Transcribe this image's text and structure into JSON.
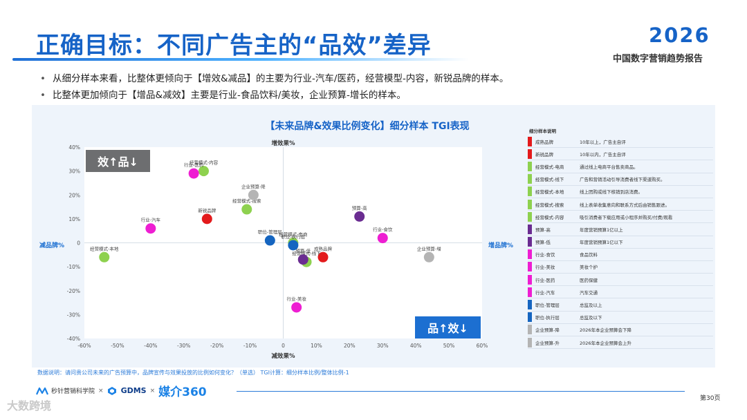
{
  "header": {
    "title": "正确目标：不同广告主的“品效”差异",
    "brand_year": "2026",
    "brand_subtitle": "中国数字营销趋势报告"
  },
  "bullets": [
    "从细分样本来看，比整体更倾向于【增效&减品】的主要为行业-汽车/医药，经营模型-内容，新锐品牌的样本。",
    "比整体更加倾向于【增品&减效】主要是行业-食品饮料/美妆，企业预算-增长的样本。"
  ],
  "chart_data": {
    "type": "scatter",
    "title": "【未来品牌&效果比例变化】细分样本  TGI表现",
    "axis_labels": {
      "top": "增效果%",
      "bottom": "减效果%",
      "left": "减品牌%",
      "right": "增品牌%"
    },
    "xlim": [
      -60,
      60
    ],
    "ylim": [
      -40,
      40
    ],
    "x_ticks": [
      "-60%",
      "-50%",
      "-40%",
      "-30%",
      "-20%",
      "-10%",
      "0",
      "10%",
      "20%",
      "30%",
      "40%",
      "50%",
      "60%"
    ],
    "y_ticks": [
      "40%",
      "30%",
      "20%",
      "10%",
      "0",
      "-10%",
      "-20%",
      "-30%",
      "-40%"
    ],
    "quadrant_labels": {
      "top_left": "效↑品↓",
      "bottom_right": "品↑效↓"
    },
    "points": [
      {
        "label": "成熟品牌",
        "x": 12,
        "y": -6,
        "color": "#e31a1c"
      },
      {
        "label": "新锐品牌",
        "x": -23,
        "y": 10,
        "color": "#e31a1c"
      },
      {
        "label": "经营模式-电商",
        "x": 3,
        "y": 0,
        "color": "#8ed14f"
      },
      {
        "label": "经营模式-线下",
        "x": 7,
        "y": -8,
        "color": "#8ed14f"
      },
      {
        "label": "经营模式-本地",
        "x": -54,
        "y": -6,
        "color": "#8ed14f"
      },
      {
        "label": "经营模式-搜索",
        "x": -11,
        "y": 14,
        "color": "#8ed14f"
      },
      {
        "label": "经营模式-内容",
        "x": -24,
        "y": 30,
        "color": "#8ed14f"
      },
      {
        "label": "预算-高",
        "x": 23,
        "y": 11,
        "color": "#6a2c91"
      },
      {
        "label": "预算-低",
        "x": 6,
        "y": -7,
        "color": "#6a2c91"
      },
      {
        "label": "行业-食饮",
        "x": 30,
        "y": 2,
        "color": "#ee1ed2"
      },
      {
        "label": "行业-美妆",
        "x": 4,
        "y": -27,
        "color": "#ee1ed2"
      },
      {
        "label": "行业-医药",
        "x": -27,
        "y": 29,
        "color": "#ee1ed2"
      },
      {
        "label": "行业-汽车",
        "x": -40,
        "y": 6,
        "color": "#ee1ed2"
      },
      {
        "label": "职位-管理层",
        "x": -4,
        "y": 1,
        "color": "#1565c0"
      },
      {
        "label": "职位-执行层",
        "x": 3,
        "y": -1,
        "color": "#1565c0"
      },
      {
        "label": "企业预算-降",
        "x": -9,
        "y": 20,
        "color": "#b4b4b4"
      },
      {
        "label": "企业预算-增",
        "x": 44,
        "y": -6,
        "color": "#b4b4b4"
      }
    ]
  },
  "legend": {
    "header": "细分样本说明",
    "items": [
      {
        "name": "成熟品牌",
        "desc": "10年以上，广告主自评",
        "color": "#e31a1c"
      },
      {
        "name": "新锐品牌",
        "desc": "10年以内，广告主自评",
        "color": "#e31a1c"
      },
      {
        "name": "经营模式-电商",
        "desc": "通过线上电商平台售卖商品。",
        "color": "#8ed14f"
      },
      {
        "name": "经营模式-线下",
        "desc": "广告和营销活动引导消费者线下渠道购买。",
        "color": "#8ed14f"
      },
      {
        "name": "经营模式-本地",
        "desc": "线上团购或线下核销到店消费。",
        "color": "#8ed14f"
      },
      {
        "name": "经营模式-搜索",
        "desc": "线上表单收集意向和联系方式后由销售跟进。",
        "color": "#8ed14f"
      },
      {
        "name": "经营模式-内容",
        "desc": "吸引消费者下载应用或小程序并购买/付费/观看",
        "color": "#8ed14f"
      },
      {
        "name": "预算-高",
        "desc": "年度营销预算1亿以上",
        "color": "#6a2c91"
      },
      {
        "name": "预算-低",
        "desc": "年度营销预算1亿以下",
        "color": "#6a2c91"
      },
      {
        "name": "行业-食饮",
        "desc": "食品饮料",
        "color": "#ee1ed2"
      },
      {
        "name": "行业-美妆",
        "desc": "美妆个护",
        "color": "#ee1ed2"
      },
      {
        "name": "行业-医药",
        "desc": "医药保健",
        "color": "#ee1ed2"
      },
      {
        "name": "行业-汽车",
        "desc": "汽车交通",
        "color": "#ee1ed2"
      },
      {
        "name": "职位-管理层",
        "desc": "总监及以上",
        "color": "#1565c0"
      },
      {
        "name": "职位-执行层",
        "desc": "总监及以下",
        "color": "#1565c0"
      },
      {
        "name": "企业预算-降",
        "desc": "2026年本企业预算会下降",
        "color": "#b4b4b4"
      },
      {
        "name": "企业预算-升",
        "desc": "2026年本企业预算会上升",
        "color": "#b4b4b4"
      }
    ]
  },
  "footnote": "数据说明：请问贵公司未来的广告预算中，品牌宣传与效果投放的比例如何变化？（单选）   TGI计算：细分样本比例/整体比例-1",
  "footer": {
    "logo1": "秒针营销科学院",
    "logo2": "GDMS",
    "logo3": "媒介360",
    "separator": "×",
    "page": "第30页",
    "watermark": "大数跨境"
  },
  "colors": {
    "brand_blue": "#1663c7",
    "panel_bg": "#eef4fb",
    "axis": "#c9d3de",
    "grid_border": "#5f8fc9",
    "quadrant_dark": "#6d6e70",
    "quadrant_blue": "#1c6fd1"
  }
}
